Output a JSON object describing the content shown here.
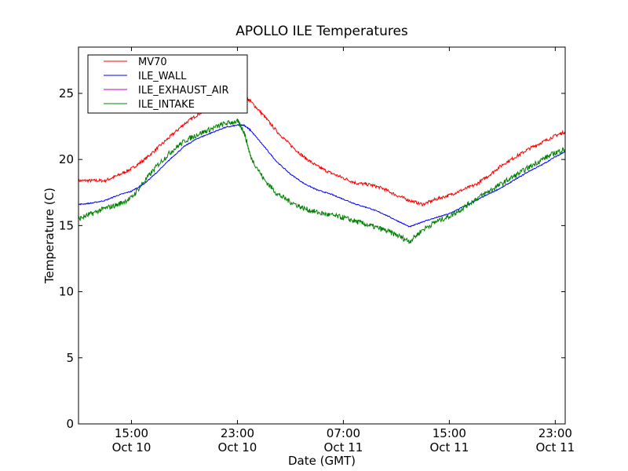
{
  "chart_data": {
    "type": "line",
    "title": "APOLLO ILE Temperatures",
    "xlabel": "Date (GMT)",
    "ylabel": "Temperature (C)",
    "x_unit": "datetime (GMT)",
    "xlim": [
      "Oct 10 11:00",
      "Oct 11 23:45"
    ],
    "ylim": [
      0,
      28.5
    ],
    "yticks": [
      0,
      5,
      10,
      15,
      20,
      25
    ],
    "xticks": [
      {
        "value": "Oct 10 15:00",
        "time": "15:00",
        "date": "Oct 10"
      },
      {
        "value": "Oct 10 23:00",
        "time": "23:00",
        "date": "Oct 10"
      },
      {
        "value": "Oct 11 07:00",
        "time": "07:00",
        "date": "Oct 11"
      },
      {
        "value": "Oct 11 15:00",
        "time": "15:00",
        "date": "Oct 11"
      },
      {
        "value": "Oct 11 23:00",
        "time": "23:00",
        "date": "Oct 11"
      }
    ],
    "grid": false,
    "legend_position": "top-left",
    "series": [
      {
        "name": "MV70",
        "color": "#ff0000",
        "noise": 0.12,
        "x": [
          "Oct 10 11:00",
          "Oct 10 12:00",
          "Oct 10 13:00",
          "Oct 10 14:00",
          "Oct 10 15:00",
          "Oct 10 16:00",
          "Oct 10 17:00",
          "Oct 10 18:00",
          "Oct 10 19:00",
          "Oct 10 20:00",
          "Oct 10 21:00",
          "Oct 10 22:00",
          "Oct 10 23:00",
          "Oct 10 23:30",
          "Oct 11 00:00",
          "Oct 11 01:00",
          "Oct 11 02:00",
          "Oct 11 03:00",
          "Oct 11 04:00",
          "Oct 11 05:00",
          "Oct 11 06:00",
          "Oct 11 07:00",
          "Oct 11 08:00",
          "Oct 11 09:00",
          "Oct 11 10:00",
          "Oct 11 11:00",
          "Oct 11 12:00",
          "Oct 11 13:00",
          "Oct 11 14:00",
          "Oct 11 15:00",
          "Oct 11 16:00",
          "Oct 11 17:00",
          "Oct 11 18:00",
          "Oct 11 19:00",
          "Oct 11 20:00",
          "Oct 11 21:00",
          "Oct 11 22:00",
          "Oct 11 23:00",
          "Oct 11 23:45"
        ],
        "y": [
          18.4,
          18.4,
          18.4,
          18.8,
          19.3,
          20.0,
          20.9,
          21.8,
          22.7,
          23.4,
          23.9,
          24.4,
          24.7,
          24.8,
          24.4,
          23.3,
          22.1,
          21.1,
          20.2,
          19.5,
          19.0,
          18.6,
          18.2,
          18.1,
          17.8,
          17.3,
          16.9,
          16.6,
          17.0,
          17.3,
          17.7,
          18.1,
          18.8,
          19.6,
          20.2,
          20.8,
          21.3,
          21.8,
          22.1
        ]
      },
      {
        "name": "ILE_WALL",
        "color": "#0000ff",
        "noise": 0.04,
        "x": [
          "Oct 10 11:00",
          "Oct 10 12:00",
          "Oct 10 13:00",
          "Oct 10 14:00",
          "Oct 10 15:00",
          "Oct 10 16:00",
          "Oct 10 17:00",
          "Oct 10 18:00",
          "Oct 10 19:00",
          "Oct 10 20:00",
          "Oct 10 21:00",
          "Oct 10 22:00",
          "Oct 10 23:00",
          "Oct 10 23:30",
          "Oct 11 00:00",
          "Oct 11 01:00",
          "Oct 11 02:00",
          "Oct 11 03:00",
          "Oct 11 04:00",
          "Oct 11 05:00",
          "Oct 11 06:00",
          "Oct 11 07:00",
          "Oct 11 08:00",
          "Oct 11 09:00",
          "Oct 11 10:00",
          "Oct 11 11:00",
          "Oct 11 12:00",
          "Oct 11 13:00",
          "Oct 11 14:00",
          "Oct 11 15:00",
          "Oct 11 16:00",
          "Oct 11 17:00",
          "Oct 11 18:00",
          "Oct 11 19:00",
          "Oct 11 20:00",
          "Oct 11 21:00",
          "Oct 11 22:00",
          "Oct 11 23:00",
          "Oct 11 23:45"
        ],
        "y": [
          16.6,
          16.7,
          16.9,
          17.3,
          17.6,
          18.2,
          19.1,
          20.1,
          21.0,
          21.6,
          22.0,
          22.4,
          22.6,
          22.6,
          22.2,
          21.0,
          19.8,
          18.9,
          18.2,
          17.7,
          17.4,
          17.0,
          16.6,
          16.3,
          15.9,
          15.4,
          14.9,
          15.3,
          15.6,
          15.9,
          16.4,
          16.9,
          17.4,
          17.9,
          18.5,
          19.1,
          19.6,
          20.2,
          20.6
        ]
      },
      {
        "name": "ILE_EXHAUST_AIR",
        "color": "#bf00bf",
        "x": [],
        "y": []
      },
      {
        "name": "ILE_INTAKE",
        "color": "#008000",
        "noise": 0.2,
        "x": [
          "Oct 10 11:00",
          "Oct 10 12:00",
          "Oct 10 13:00",
          "Oct 10 14:00",
          "Oct 10 15:00",
          "Oct 10 16:00",
          "Oct 10 17:00",
          "Oct 10 18:00",
          "Oct 10 19:00",
          "Oct 10 20:00",
          "Oct 10 21:00",
          "Oct 10 22:00",
          "Oct 10 23:00",
          "Oct 10 23:30",
          "Oct 11 00:00",
          "Oct 11 01:00",
          "Oct 11 02:00",
          "Oct 11 03:00",
          "Oct 11 04:00",
          "Oct 11 05:00",
          "Oct 11 06:00",
          "Oct 11 07:00",
          "Oct 11 08:00",
          "Oct 11 09:00",
          "Oct 11 10:00",
          "Oct 11 11:00",
          "Oct 11 12:00",
          "Oct 11 13:00",
          "Oct 11 14:00",
          "Oct 11 15:00",
          "Oct 11 16:00",
          "Oct 11 17:00",
          "Oct 11 18:00",
          "Oct 11 19:00",
          "Oct 11 20:00",
          "Oct 11 21:00",
          "Oct 11 22:00",
          "Oct 11 23:00",
          "Oct 11 23:45"
        ],
        "y": [
          15.5,
          15.9,
          16.3,
          16.6,
          17.1,
          18.4,
          19.6,
          20.6,
          21.4,
          21.9,
          22.3,
          22.7,
          22.9,
          22.1,
          20.2,
          18.5,
          17.4,
          16.8,
          16.3,
          16.0,
          15.8,
          15.6,
          15.3,
          15.0,
          14.7,
          14.3,
          13.8,
          14.7,
          15.3,
          15.7,
          16.3,
          17.0,
          17.6,
          18.2,
          18.8,
          19.4,
          20.0,
          20.5,
          20.8
        ]
      }
    ]
  }
}
